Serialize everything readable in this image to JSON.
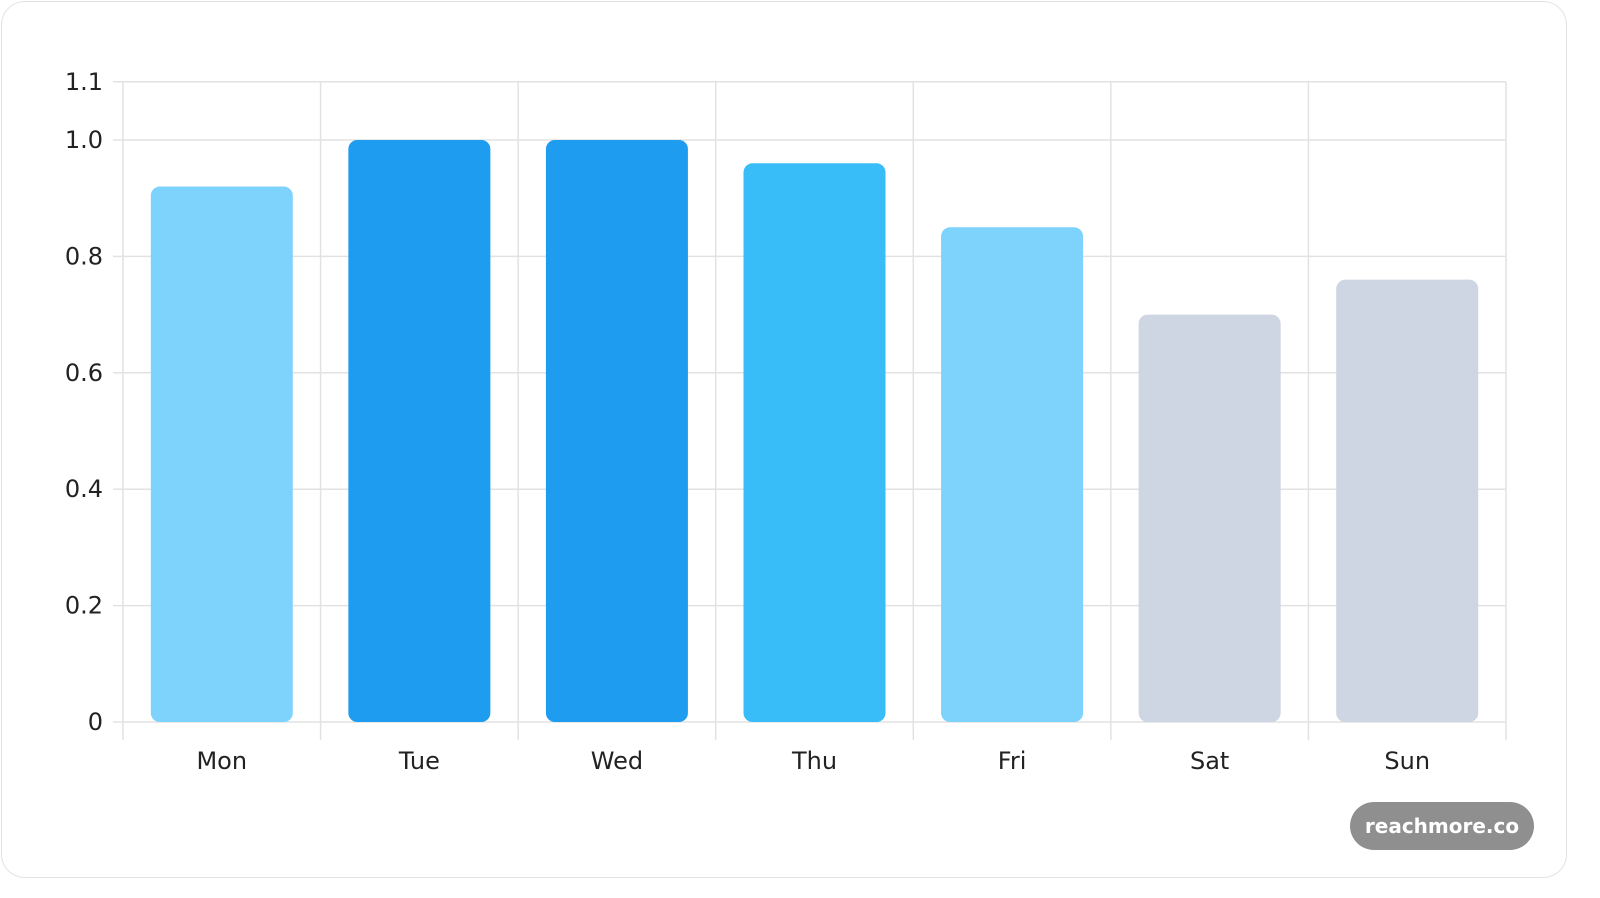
{
  "chart_data": {
    "type": "bar",
    "categories": [
      "Mon",
      "Tue",
      "Wed",
      "Thu",
      "Fri",
      "Sat",
      "Sun"
    ],
    "values": [
      0.92,
      1.0,
      1.0,
      0.96,
      0.85,
      0.7,
      0.76
    ],
    "bar_colors": [
      "#7dd3fc",
      "#1e9cef",
      "#1e9cef",
      "#38bdf8",
      "#7dd3fc",
      "#cdd6e2",
      "#cdd6e2"
    ],
    "y_ticks": [
      "0",
      "0.2",
      "0.4",
      "0.6",
      "0.8",
      "1.0",
      "1.1"
    ],
    "ylim": [
      0,
      1.1
    ],
    "grid": true,
    "title": "",
    "xlabel": "",
    "ylabel": ""
  },
  "badge": {
    "label": "reachmore.co",
    "color": "#8f8f8f"
  }
}
